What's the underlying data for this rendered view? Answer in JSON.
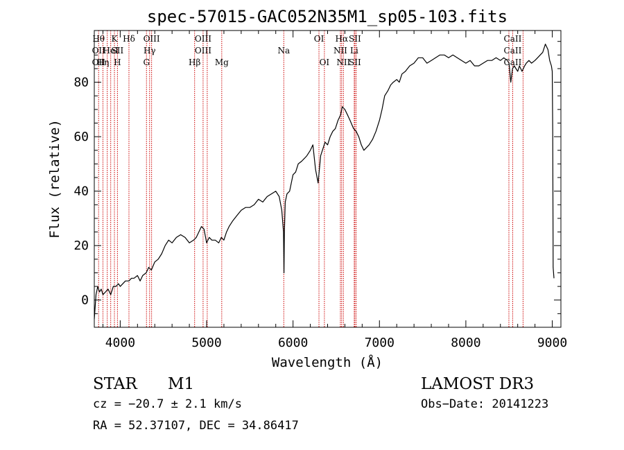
{
  "chart_data": {
    "type": "line",
    "title": "spec-57015-GAC052N35M1_sp05-103.fits",
    "xlabel": "Wavelength (Å)",
    "ylabel": "Flux (relative)",
    "xlim": [
      3700,
      9100
    ],
    "ylim": [
      -10,
      99
    ],
    "xticks": [
      4000,
      5000,
      6000,
      7000,
      8000,
      9000
    ],
    "xtick_labels": [
      "4000",
      "5000",
      "6000",
      "7000",
      "8000",
      "9000"
    ],
    "yticks": [
      0,
      20,
      40,
      60,
      80
    ],
    "ytick_labels": [
      "0",
      "20",
      "40",
      "60",
      "80"
    ],
    "grid": false,
    "series": [
      {
        "name": "spectrum",
        "x": [
          3700,
          3720,
          3740,
          3760,
          3780,
          3800,
          3830,
          3860,
          3890,
          3920,
          3950,
          3980,
          4000,
          4030,
          4060,
          4100,
          4130,
          4160,
          4200,
          4230,
          4260,
          4300,
          4330,
          4360,
          4400,
          4440,
          4480,
          4520,
          4560,
          4600,
          4650,
          4700,
          4750,
          4800,
          4850,
          4880,
          4910,
          4940,
          4970,
          5000,
          5030,
          5060,
          5100,
          5140,
          5170,
          5200,
          5230,
          5260,
          5300,
          5350,
          5400,
          5450,
          5500,
          5550,
          5600,
          5650,
          5700,
          5750,
          5800,
          5840,
          5870,
          5890,
          5895,
          5900,
          5910,
          5930,
          5960,
          6000,
          6030,
          6060,
          6100,
          6130,
          6160,
          6200,
          6230,
          6260,
          6290,
          6320,
          6350,
          6370,
          6400,
          6430,
          6460,
          6490,
          6520,
          6550,
          6570,
          6600,
          6630,
          6660,
          6700,
          6730,
          6760,
          6790,
          6820,
          6850,
          6880,
          6920,
          6960,
          7000,
          7030,
          7060,
          7100,
          7130,
          7160,
          7200,
          7230,
          7260,
          7300,
          7350,
          7400,
          7450,
          7500,
          7550,
          7600,
          7650,
          7700,
          7750,
          7800,
          7850,
          7900,
          7950,
          8000,
          8050,
          8100,
          8150,
          8200,
          8250,
          8300,
          8350,
          8400,
          8440,
          8480,
          8500,
          8520,
          8540,
          8560,
          8580,
          8600,
          8620,
          8650,
          8680,
          8700,
          8730,
          8760,
          8800,
          8830,
          8860,
          8890,
          8920,
          8950,
          8970,
          8990,
          9000,
          9005,
          9010,
          9020
        ],
        "values": [
          -7,
          2,
          5,
          3,
          4,
          2,
          3,
          4,
          2,
          5,
          5,
          6,
          5,
          6,
          7,
          7,
          8,
          8,
          9,
          7,
          9,
          10,
          12,
          11,
          14,
          15,
          17,
          20,
          22,
          21,
          23,
          24,
          23,
          21,
          22,
          23,
          25,
          27,
          26,
          21,
          23,
          22,
          22,
          21,
          23,
          22,
          25,
          27,
          29,
          31,
          33,
          34,
          34,
          35,
          37,
          36,
          38,
          39,
          40,
          38,
          33,
          25,
          10,
          25,
          36,
          39,
          40,
          46,
          47,
          50,
          51,
          52,
          53,
          55,
          57,
          48,
          43,
          53,
          56,
          58,
          57,
          60,
          62,
          63,
          66,
          68,
          71,
          70,
          68,
          66,
          63,
          62,
          60,
          57,
          55,
          56,
          57,
          59,
          62,
          66,
          70,
          75,
          77,
          79,
          80,
          81,
          80,
          83,
          84,
          86,
          87,
          89,
          89,
          87,
          88,
          89,
          90,
          90,
          89,
          90,
          89,
          88,
          87,
          88,
          86,
          86,
          87,
          88,
          88,
          89,
          88,
          89,
          88,
          87,
          80,
          85,
          86,
          85,
          84,
          86,
          84,
          86,
          87,
          88,
          87,
          88,
          89,
          90,
          91,
          94,
          92,
          88,
          86,
          84,
          62,
          12,
          8
        ]
      }
    ],
    "annotations": [
      {
        "wavelength": 3750,
        "labels": [
          "Hθ",
          "OII",
          "OII"
        ]
      },
      {
        "wavelength": 3800,
        "labels": [
          "",
          "",
          "Hη"
        ]
      },
      {
        "wavelength": 3850,
        "labels": [
          "",
          "",
          ""
        ]
      },
      {
        "wavelength": 3890,
        "labels": [
          "",
          "HeI",
          ""
        ]
      },
      {
        "wavelength": 3933,
        "labels": [
          "K",
          "",
          ""
        ]
      },
      {
        "wavelength": 3968,
        "labels": [
          "",
          "SII",
          "H"
        ]
      },
      {
        "wavelength": 4101,
        "labels": [
          "Hδ",
          "",
          ""
        ]
      },
      {
        "wavelength": 4304,
        "labels": [
          "",
          "",
          "G"
        ]
      },
      {
        "wavelength": 4340,
        "labels": [
          "",
          "Hγ",
          ""
        ]
      },
      {
        "wavelength": 4363,
        "labels": [
          "OIII",
          "",
          ""
        ]
      },
      {
        "wavelength": 4861,
        "labels": [
          "",
          "",
          "Hβ"
        ]
      },
      {
        "wavelength": 4959,
        "labels": [
          "OIII",
          "OIII",
          ""
        ]
      },
      {
        "wavelength": 5007,
        "labels": [
          "",
          "",
          ""
        ]
      },
      {
        "wavelength": 5175,
        "labels": [
          "",
          "",
          "Mg"
        ]
      },
      {
        "wavelength": 5893,
        "labels": [
          "",
          "Na",
          ""
        ]
      },
      {
        "wavelength": 6300,
        "labels": [
          "OI",
          "",
          ""
        ]
      },
      {
        "wavelength": 6363,
        "labels": [
          "",
          "",
          "OI"
        ]
      },
      {
        "wavelength": 6548,
        "labels": [
          "",
          "NII",
          ""
        ]
      },
      {
        "wavelength": 6563,
        "labels": [
          "Hα",
          "",
          ""
        ]
      },
      {
        "wavelength": 6583,
        "labels": [
          "",
          "",
          "NII"
        ]
      },
      {
        "wavelength": 6708,
        "labels": [
          "",
          "Li",
          ""
        ]
      },
      {
        "wavelength": 6716,
        "labels": [
          "SII",
          "",
          "SII"
        ]
      },
      {
        "wavelength": 6731,
        "labels": [
          "",
          "",
          ""
        ]
      },
      {
        "wavelength": 8498,
        "labels": [
          "",
          "",
          ""
        ]
      },
      {
        "wavelength": 8542,
        "labels": [
          "CaII",
          "CaII",
          "CaII"
        ]
      },
      {
        "wavelength": 8662,
        "labels": [
          "",
          "",
          ""
        ]
      }
    ]
  },
  "info": {
    "object_class": "STAR",
    "subclass": "M1",
    "survey": "LAMOST DR3",
    "cz_text": "cz = −20.7 ± 2.1 km/s",
    "obs_date_text": "Obs−Date: 20141223",
    "radec_text": "RA =  52.37107, DEC =  34.86417"
  },
  "colors": {
    "spectrum": "#000000",
    "line_markers": "#cc0000",
    "axes": "#000000",
    "background": "#ffffff"
  }
}
